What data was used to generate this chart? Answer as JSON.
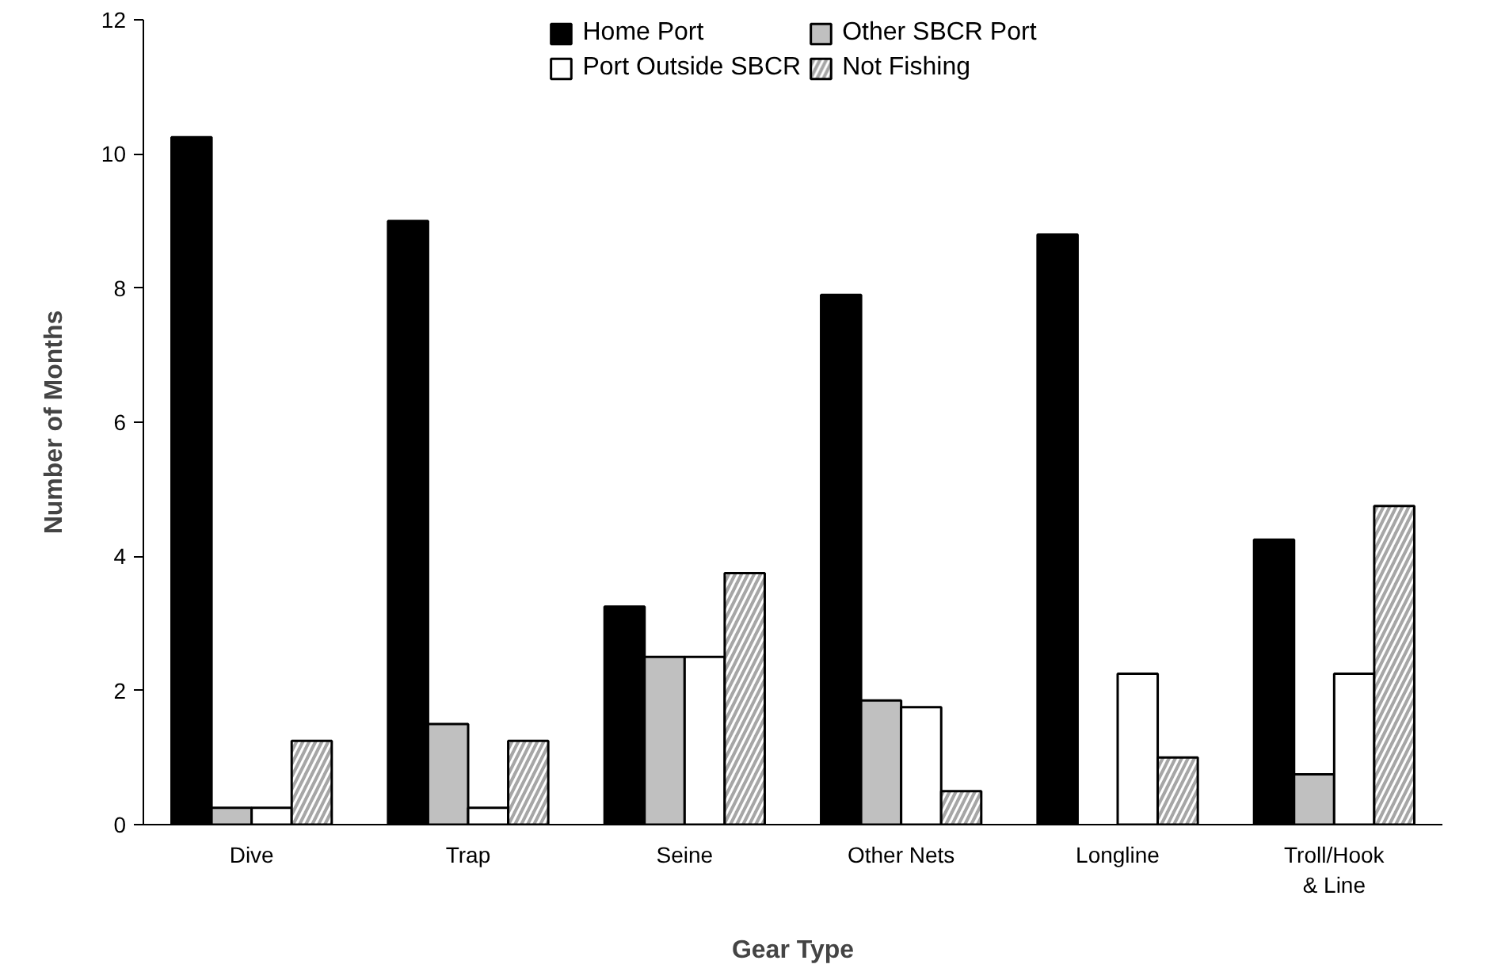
{
  "chart_data": {
    "type": "bar",
    "xlabel": "Gear Type",
    "ylabel": "Number of Months",
    "categories": [
      "Dive",
      "Trap",
      "Seine",
      "Other Nets",
      "Longline",
      "Troll/Hook & Line"
    ],
    "series": [
      {
        "name": "Home Port",
        "color": "#000000",
        "values": [
          10.25,
          9,
          3.25,
          7.9,
          8.8,
          4.25
        ]
      },
      {
        "name": "Other SBCR Port",
        "color": "#c0c0c0",
        "values": [
          0.25,
          1.5,
          2.5,
          1.85,
          0,
          0.75
        ]
      },
      {
        "name": "Port Outside SBCR",
        "color": "#ffffff",
        "values": [
          0.25,
          0.25,
          2.5,
          1.75,
          2.25,
          2.25
        ]
      },
      {
        "name": "Not Fishing",
        "color": "#a6a6a6",
        "values": [
          1.25,
          1.25,
          3.75,
          0.5,
          1,
          4.75
        ]
      }
    ],
    "ylim": [
      0,
      12
    ],
    "yticks": [
      0,
      2,
      4,
      6,
      8,
      10,
      12
    ],
    "grid": false,
    "legend": "top"
  }
}
